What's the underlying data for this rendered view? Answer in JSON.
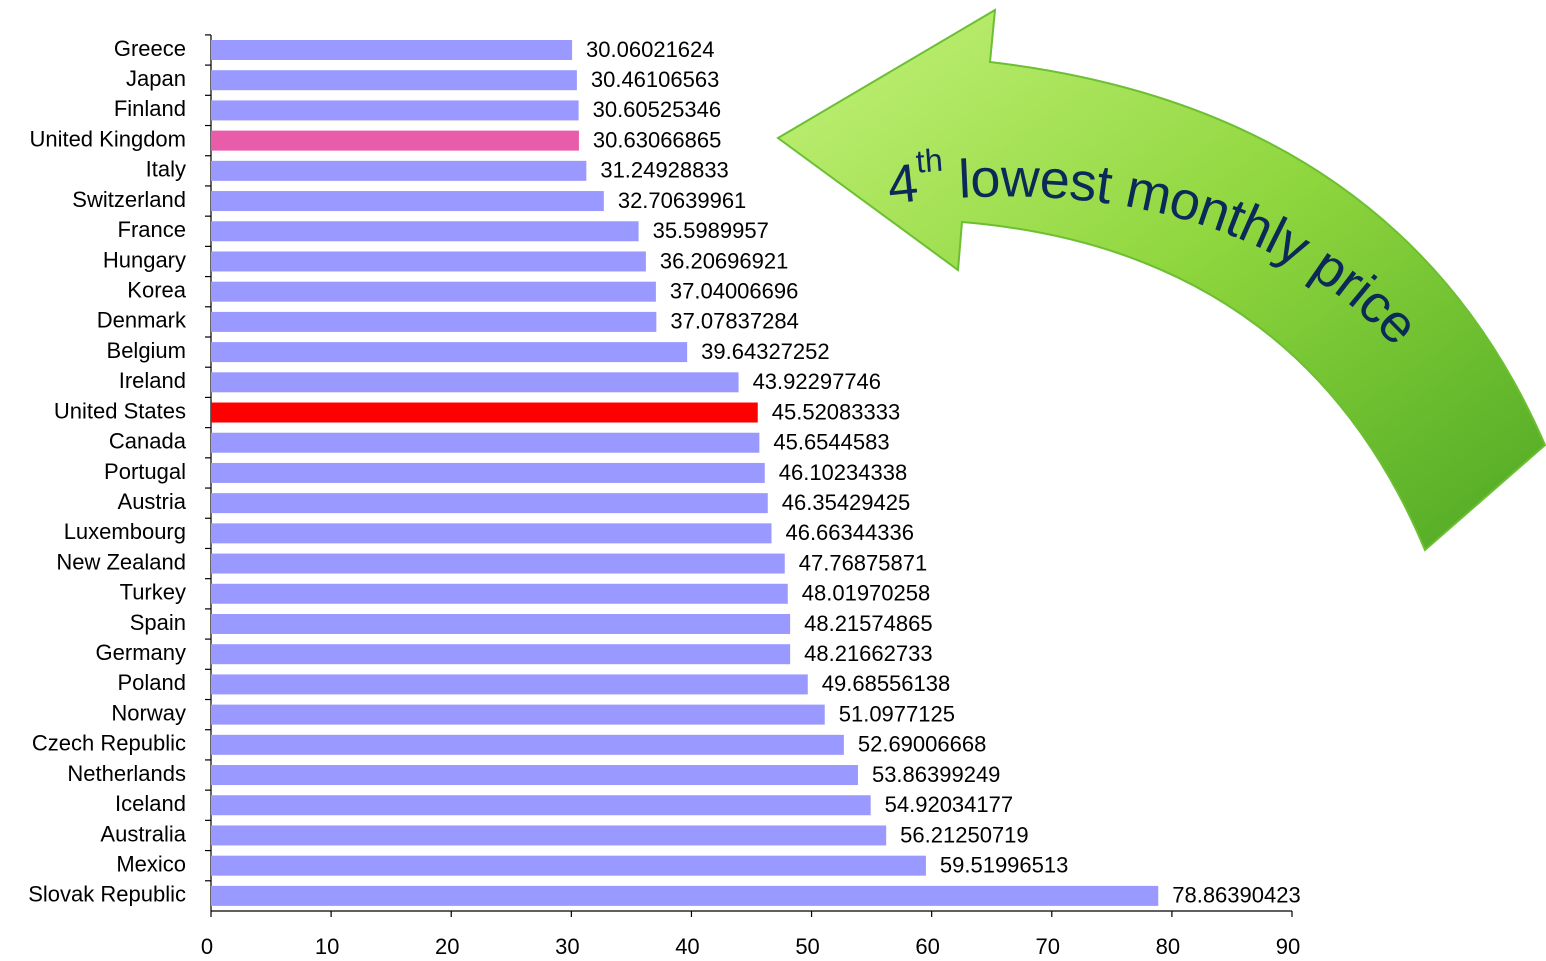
{
  "chart_data": {
    "type": "barh",
    "categories": [
      "Greece",
      "Japan",
      "Finland",
      "United Kingdom",
      "Italy",
      "Switzerland",
      "France",
      "Hungary",
      "Korea",
      "Denmark",
      "Belgium",
      "Ireland",
      "United States",
      "Canada",
      "Portugal",
      "Austria",
      "Luxembourg",
      "New Zealand",
      "Turkey",
      "Spain",
      "Germany",
      "Poland",
      "Norway",
      "Czech Republic",
      "Netherlands",
      "Iceland",
      "Australia",
      "Mexico",
      "Slovak Republic"
    ],
    "values": [
      30.06021624,
      30.46106563,
      30.60525346,
      30.63066865,
      31.24928833,
      32.70639961,
      35.5989957,
      36.20696921,
      37.04006696,
      37.07837284,
      39.64327252,
      43.92297746,
      45.52083333,
      45.6544583,
      46.10234338,
      46.35429425,
      46.66344336,
      47.76875871,
      48.01970258,
      48.21574865,
      48.21662733,
      49.68556138,
      51.0977125,
      52.69006668,
      53.86399249,
      54.92034177,
      56.21250719,
      59.51996513,
      78.86390423
    ],
    "colors": [
      "#9999ff",
      "#9999ff",
      "#9999ff",
      "#e85caa",
      "#9999ff",
      "#9999ff",
      "#9999ff",
      "#9999ff",
      "#9999ff",
      "#9999ff",
      "#9999ff",
      "#9999ff",
      "#ff0000",
      "#9999ff",
      "#9999ff",
      "#9999ff",
      "#9999ff",
      "#9999ff",
      "#9999ff",
      "#9999ff",
      "#9999ff",
      "#9999ff",
      "#9999ff",
      "#9999ff",
      "#9999ff",
      "#9999ff",
      "#9999ff",
      "#9999ff",
      "#9999ff"
    ],
    "xlim": [
      0,
      90
    ],
    "xticks": [
      0,
      10,
      20,
      30,
      40,
      50,
      60,
      70,
      80,
      90
    ],
    "annotation": {
      "number": "4",
      "superscript": "th",
      "text": "lowest monthly price"
    }
  }
}
